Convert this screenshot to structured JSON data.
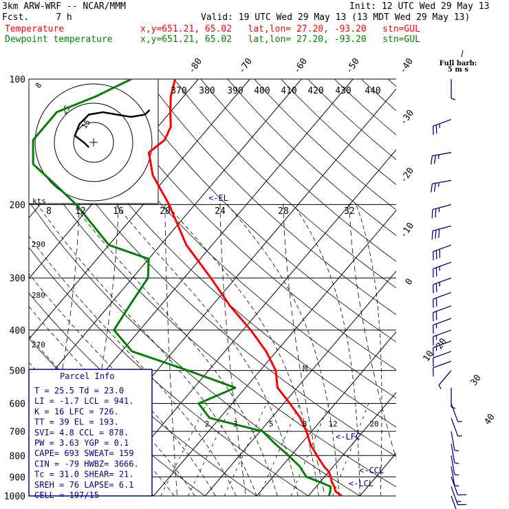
{
  "header": {
    "model": "3km ARW-WRF -- NCAR/MMM",
    "init": "Init: 12 UTC Wed 29 May 13",
    "fcst": "Fcst.     7 h",
    "valid": "Valid: 19 UTC Wed 29 May 13 (13 MDT Wed 29 May 13)",
    "temp_label": "Temperature",
    "temp_info": "x,y=651.21, 65.02   lat,lon= 27.20, -93.20   stn=GUL",
    "dew_label": "Dewpoint temperature",
    "dew_info": "x,y=651.21, 65.02   lat,lon= 27.20, -93.20   stn=GUL"
  },
  "colors": {
    "temperature": "#ff0000",
    "dewpoint": "#008000",
    "wind": "#000080",
    "parcel_box": "#000080"
  },
  "barb_label": {
    "title": "Full barb",
    "unit": "5 m s"
  },
  "hodograph": {
    "unit_label": "kts",
    "ring_labels": [
      "8",
      "25",
      "15"
    ]
  },
  "markers": {
    "el": "<-EL",
    "lfc": "<-LFC",
    "ccl": "<-CCL",
    "lcl": "<-LCL",
    "m": "M"
  },
  "parcel_info": {
    "title": "Parcel Info",
    "rows": [
      "T  =   25.5 Td =  23.0",
      "LI =   -1.7 LCL =  941.",
      "K  =     16 LFC =  726.",
      "TT =     39 EL  =  193.",
      "SVI=    4.8 CCL =  878.",
      "PW =   3.63 YGP =   0.1",
      "CAPE=   693 SWEAT=  159",
      "CIN =   -79 HWBZ= 3666.",
      "Tc =   31.0 SHEAR=  21.",
      "SREH =   76 LAPSE=  6.1",
      "CELL = 197/15"
    ]
  },
  "chart_data": {
    "type": "line",
    "title": "",
    "xlabel": "",
    "ylabel": "",
    "pressure_ticks": [
      100,
      200,
      300,
      400,
      500,
      600,
      700,
      800,
      900,
      1000
    ],
    "pressure_range": [
      100,
      1000
    ],
    "isotherm_labels": [
      "-80",
      "-70",
      "-60",
      "-50",
      "-40",
      "-30",
      "-20",
      "-10",
      "0",
      "10",
      "20",
      "30",
      "40"
    ],
    "theta_labels": [
      "370",
      "380",
      "390",
      "400",
      "410",
      "420",
      "430",
      "440"
    ],
    "theta_left_labels": [
      "290",
      "280",
      "270"
    ],
    "mixing_ratio_labels": [
      "2",
      "3",
      "5",
      "8",
      "12",
      "20"
    ],
    "hodo_ring_labels": [
      "8",
      "12",
      "16",
      "20",
      "24",
      "28",
      "32"
    ],
    "series": [
      {
        "name": "Temperature",
        "points": [
          [
            1000,
            26.5
          ],
          [
            975,
            24.5
          ],
          [
            950,
            23.5
          ],
          [
            925,
            22.2
          ],
          [
            900,
            21.2
          ],
          [
            875,
            20.0
          ],
          [
            850,
            18.2
          ],
          [
            800,
            15.0
          ],
          [
            750,
            11.8
          ],
          [
            700,
            9.0
          ],
          [
            650,
            5.6
          ],
          [
            600,
            1.2
          ],
          [
            550,
            -3.8
          ],
          [
            500,
            -7.0
          ],
          [
            450,
            -12.0
          ],
          [
            400,
            -18.5
          ],
          [
            350,
            -26.5
          ],
          [
            300,
            -34.8
          ],
          [
            250,
            -45.0
          ],
          [
            200,
            -55.0
          ],
          [
            170,
            -63.0
          ],
          [
            150,
            -67.5
          ],
          [
            140,
            -66.5
          ],
          [
            130,
            -67.5
          ],
          [
            120,
            -70.0
          ],
          [
            110,
            -72.5
          ],
          [
            100,
            -74.5
          ]
        ]
      },
      {
        "name": "Dewpoint temperature",
        "points": [
          [
            1000,
            24.0
          ],
          [
            975,
            23.5
          ],
          [
            950,
            22.8
          ],
          [
            925,
            19.8
          ],
          [
            900,
            16.5
          ],
          [
            875,
            15.0
          ],
          [
            850,
            13.5
          ],
          [
            800,
            9.5
          ],
          [
            750,
            5.0
          ],
          [
            700,
            0.5
          ],
          [
            650,
            -12.0
          ],
          [
            600,
            -16.5
          ],
          [
            550,
            -12.0
          ],
          [
            500,
            -24.0
          ],
          [
            450,
            -38.0
          ],
          [
            400,
            -45.0
          ],
          [
            350,
            -46.0
          ],
          [
            300,
            -47.0
          ],
          [
            270,
            -50.0
          ],
          [
            250,
            -60.0
          ],
          [
            200,
            -73.0
          ],
          [
            180,
            -80.0
          ],
          [
            160,
            -88.0
          ],
          [
            140,
            -92.0
          ],
          [
            120,
            -92.0
          ],
          [
            110,
            -87.0
          ],
          [
            100,
            -83.0
          ]
        ]
      }
    ],
    "hodograph_trace": [
      [
        -2,
        -8
      ],
      [
        -4,
        -6
      ],
      [
        -8,
        -3
      ],
      [
        -6,
        2
      ],
      [
        -2,
        6
      ],
      [
        4,
        7
      ],
      [
        10,
        6
      ],
      [
        16,
        5
      ],
      [
        22,
        6
      ],
      [
        24,
        8
      ]
    ],
    "wind_profile_kts": [
      {
        "p": 100,
        "spd": 5,
        "dir": 180
      },
      {
        "p": 125,
        "spd": 25,
        "dir": 250
      },
      {
        "p": 150,
        "spd": 25,
        "dir": 260
      },
      {
        "p": 175,
        "spd": 25,
        "dir": 260
      },
      {
        "p": 200,
        "spd": 25,
        "dir": 255
      },
      {
        "p": 225,
        "spd": 30,
        "dir": 255
      },
      {
        "p": 250,
        "spd": 30,
        "dir": 250
      },
      {
        "p": 275,
        "spd": 25,
        "dir": 250
      },
      {
        "p": 300,
        "spd": 25,
        "dir": 250
      },
      {
        "p": 325,
        "spd": 20,
        "dir": 250
      },
      {
        "p": 350,
        "spd": 20,
        "dir": 250
      },
      {
        "p": 375,
        "spd": 15,
        "dir": 250
      },
      {
        "p": 400,
        "spd": 15,
        "dir": 250
      },
      {
        "p": 425,
        "spd": 15,
        "dir": 250
      },
      {
        "p": 450,
        "spd": 10,
        "dir": 250
      },
      {
        "p": 475,
        "spd": 10,
        "dir": 250
      },
      {
        "p": 500,
        "spd": 5,
        "dir": 220
      },
      {
        "p": 550,
        "spd": 5,
        "dir": 180
      },
      {
        "p": 600,
        "spd": 5,
        "dir": 160
      },
      {
        "p": 650,
        "spd": 5,
        "dir": 160
      },
      {
        "p": 700,
        "spd": 5,
        "dir": 170
      },
      {
        "p": 750,
        "spd": 5,
        "dir": 170
      },
      {
        "p": 800,
        "spd": 5,
        "dir": 170
      },
      {
        "p": 850,
        "spd": 5,
        "dir": 170
      },
      {
        "p": 900,
        "spd": 10,
        "dir": 160
      },
      {
        "p": 950,
        "spd": 15,
        "dir": 160
      },
      {
        "p": 1000,
        "spd": 15,
        "dir": 160
      }
    ]
  }
}
